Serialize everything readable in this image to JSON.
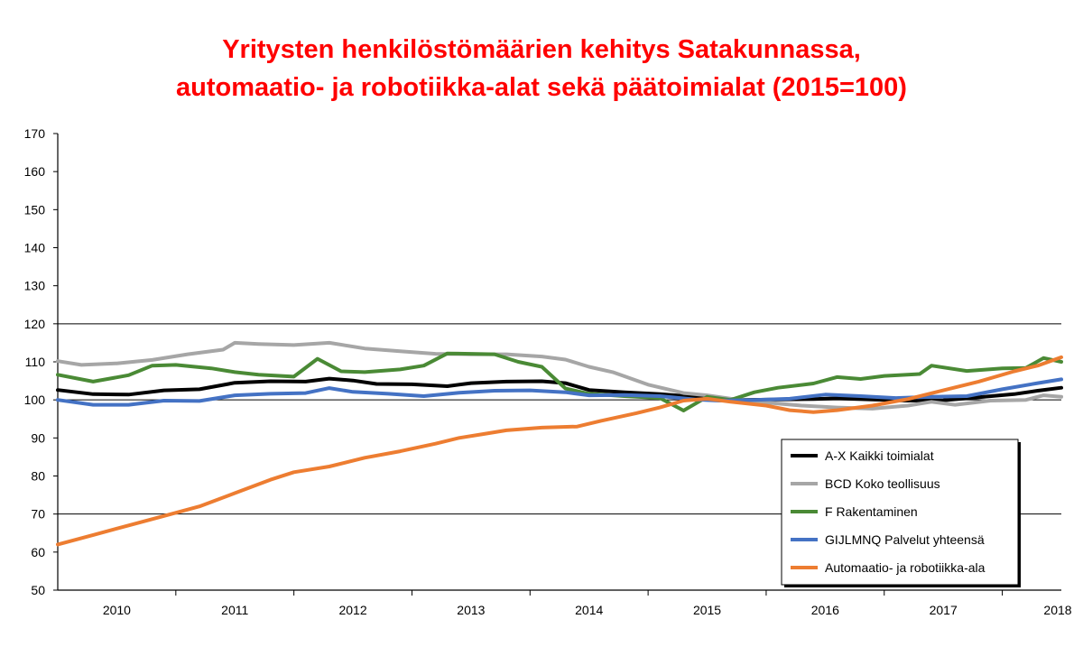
{
  "chart_data": {
    "type": "line",
    "title": "Yritysten henkilöstömäärien kehitys Satakunnassa,",
    "subtitle": "automaatio- ja robotiikka-alat sekä päätoimialat (2015=100)",
    "title_color": "#ff0000",
    "xlabel": "",
    "ylabel": "",
    "ylim": [
      50,
      170
    ],
    "yticks": [
      50,
      60,
      70,
      80,
      90,
      100,
      110,
      120,
      130,
      140,
      150,
      160,
      170
    ],
    "xlim": [
      2009.5,
      2018.0
    ],
    "xtick_labels": [
      "2010",
      "2011",
      "2012",
      "2013",
      "2014",
      "2015",
      "2016",
      "2017",
      "2018"
    ],
    "grid": "horizontal at 70, 100, 120",
    "legend_position": "bottom-right",
    "series": [
      {
        "name": "A-X Kaikki toimialat",
        "color": "#000000",
        "points": [
          [
            2009.5,
            102.6
          ],
          [
            2009.8,
            101.5
          ],
          [
            2010.1,
            101.4
          ],
          [
            2010.4,
            102.5
          ],
          [
            2010.7,
            102.8
          ],
          [
            2011.0,
            104.5
          ],
          [
            2011.3,
            104.9
          ],
          [
            2011.6,
            104.8
          ],
          [
            2011.8,
            105.6
          ],
          [
            2012.0,
            105.1
          ],
          [
            2012.2,
            104.2
          ],
          [
            2012.5,
            104.1
          ],
          [
            2012.8,
            103.6
          ],
          [
            2013.0,
            104.4
          ],
          [
            2013.3,
            104.8
          ],
          [
            2013.6,
            104.9
          ],
          [
            2013.8,
            104.4
          ],
          [
            2014.0,
            102.6
          ],
          [
            2014.3,
            102.0
          ],
          [
            2014.6,
            101.5
          ],
          [
            2014.9,
            100.8
          ],
          [
            2015.0,
            100.3
          ],
          [
            2015.3,
            100.0
          ],
          [
            2015.6,
            100.1
          ],
          [
            2015.9,
            100.2
          ],
          [
            2016.1,
            100.4
          ],
          [
            2016.4,
            100.1
          ],
          [
            2016.7,
            99.8
          ],
          [
            2017.0,
            99.9
          ],
          [
            2017.3,
            100.7
          ],
          [
            2017.6,
            101.5
          ],
          [
            2017.8,
            102.4
          ],
          [
            2018.0,
            103.2
          ]
        ]
      },
      {
        "name": "BCD Koko teollisuus",
        "color": "#a6a6a6",
        "points": [
          [
            2009.5,
            110.2
          ],
          [
            2009.7,
            109.2
          ],
          [
            2010.0,
            109.6
          ],
          [
            2010.3,
            110.5
          ],
          [
            2010.6,
            112.0
          ],
          [
            2010.9,
            113.2
          ],
          [
            2011.0,
            115.0
          ],
          [
            2011.2,
            114.7
          ],
          [
            2011.5,
            114.4
          ],
          [
            2011.8,
            115.0
          ],
          [
            2012.1,
            113.5
          ],
          [
            2012.4,
            112.8
          ],
          [
            2012.7,
            112.1
          ],
          [
            2013.0,
            112.0
          ],
          [
            2013.3,
            112.0
          ],
          [
            2013.6,
            111.4
          ],
          [
            2013.8,
            110.6
          ],
          [
            2014.0,
            108.7
          ],
          [
            2014.2,
            107.3
          ],
          [
            2014.5,
            104.0
          ],
          [
            2014.8,
            101.8
          ],
          [
            2015.0,
            101.2
          ],
          [
            2015.2,
            100.3
          ],
          [
            2015.5,
            99.3
          ],
          [
            2015.8,
            98.5
          ],
          [
            2016.1,
            98.0
          ],
          [
            2016.4,
            97.7
          ],
          [
            2016.7,
            98.5
          ],
          [
            2016.9,
            99.5
          ],
          [
            2017.1,
            98.7
          ],
          [
            2017.4,
            99.8
          ],
          [
            2017.7,
            100.0
          ],
          [
            2017.85,
            101.2
          ],
          [
            2018.0,
            100.8
          ]
        ]
      },
      {
        "name": "F Rakentaminen",
        "color": "#4a8a35",
        "points": [
          [
            2009.5,
            106.6
          ],
          [
            2009.8,
            104.8
          ],
          [
            2010.1,
            106.5
          ],
          [
            2010.3,
            109.0
          ],
          [
            2010.5,
            109.2
          ],
          [
            2010.8,
            108.3
          ],
          [
            2011.0,
            107.3
          ],
          [
            2011.2,
            106.6
          ],
          [
            2011.5,
            106.1
          ],
          [
            2011.7,
            110.8
          ],
          [
            2011.9,
            107.5
          ],
          [
            2012.1,
            107.3
          ],
          [
            2012.4,
            108.0
          ],
          [
            2012.6,
            109.0
          ],
          [
            2012.8,
            112.2
          ],
          [
            2013.0,
            112.1
          ],
          [
            2013.2,
            112.0
          ],
          [
            2013.4,
            110.0
          ],
          [
            2013.6,
            108.7
          ],
          [
            2013.8,
            103.0
          ],
          [
            2014.0,
            101.6
          ],
          [
            2014.3,
            101.0
          ],
          [
            2014.6,
            100.5
          ],
          [
            2014.8,
            97.2
          ],
          [
            2015.0,
            100.8
          ],
          [
            2015.2,
            100.0
          ],
          [
            2015.4,
            102.0
          ],
          [
            2015.6,
            103.2
          ],
          [
            2015.9,
            104.3
          ],
          [
            2016.1,
            106.0
          ],
          [
            2016.3,
            105.5
          ],
          [
            2016.5,
            106.3
          ],
          [
            2016.8,
            106.8
          ],
          [
            2016.9,
            109.0
          ],
          [
            2017.2,
            107.6
          ],
          [
            2017.5,
            108.3
          ],
          [
            2017.7,
            108.4
          ],
          [
            2017.85,
            111.0
          ],
          [
            2018.0,
            110.0
          ]
        ]
      },
      {
        "name": "GIJLMNQ Palvelut yhteensä",
        "color": "#4472c4",
        "points": [
          [
            2009.5,
            100.0
          ],
          [
            2009.8,
            98.7
          ],
          [
            2010.1,
            98.7
          ],
          [
            2010.4,
            99.8
          ],
          [
            2010.7,
            99.7
          ],
          [
            2011.0,
            101.2
          ],
          [
            2011.3,
            101.6
          ],
          [
            2011.6,
            101.8
          ],
          [
            2011.8,
            103.1
          ],
          [
            2012.0,
            102.1
          ],
          [
            2012.3,
            101.6
          ],
          [
            2012.6,
            101.0
          ],
          [
            2012.9,
            101.9
          ],
          [
            2013.2,
            102.4
          ],
          [
            2013.5,
            102.5
          ],
          [
            2013.8,
            102.0
          ],
          [
            2014.0,
            101.2
          ],
          [
            2014.3,
            101.3
          ],
          [
            2014.6,
            101.0
          ],
          [
            2014.9,
            100.1
          ],
          [
            2015.1,
            99.8
          ],
          [
            2015.4,
            100.0
          ],
          [
            2015.7,
            100.3
          ],
          [
            2016.0,
            101.4
          ],
          [
            2016.3,
            101.0
          ],
          [
            2016.6,
            100.5
          ],
          [
            2016.9,
            100.8
          ],
          [
            2017.2,
            101.0
          ],
          [
            2017.5,
            102.8
          ],
          [
            2017.8,
            104.4
          ],
          [
            2018.0,
            105.4
          ]
        ]
      },
      {
        "name": "Automaatio- ja robotiikka-ala",
        "color": "#ed7d31",
        "points": [
          [
            2009.5,
            62.0
          ],
          [
            2009.8,
            64.5
          ],
          [
            2010.1,
            67.0
          ],
          [
            2010.4,
            69.5
          ],
          [
            2010.7,
            72.0
          ],
          [
            2011.0,
            75.5
          ],
          [
            2011.3,
            79.0
          ],
          [
            2011.5,
            81.0
          ],
          [
            2011.8,
            82.5
          ],
          [
            2012.1,
            84.8
          ],
          [
            2012.4,
            86.5
          ],
          [
            2012.7,
            88.5
          ],
          [
            2012.9,
            90.0
          ],
          [
            2013.1,
            91.0
          ],
          [
            2013.3,
            92.0
          ],
          [
            2013.6,
            92.7
          ],
          [
            2013.9,
            93.0
          ],
          [
            2014.1,
            94.5
          ],
          [
            2014.4,
            96.5
          ],
          [
            2014.6,
            98.0
          ],
          [
            2014.8,
            99.8
          ],
          [
            2015.0,
            100.3
          ],
          [
            2015.2,
            99.5
          ],
          [
            2015.5,
            98.5
          ],
          [
            2015.7,
            97.3
          ],
          [
            2015.9,
            96.8
          ],
          [
            2016.1,
            97.3
          ],
          [
            2016.4,
            98.5
          ],
          [
            2016.7,
            100.2
          ],
          [
            2017.0,
            102.5
          ],
          [
            2017.3,
            104.8
          ],
          [
            2017.6,
            107.5
          ],
          [
            2017.8,
            109.0
          ],
          [
            2018.0,
            111.2
          ]
        ]
      }
    ]
  }
}
